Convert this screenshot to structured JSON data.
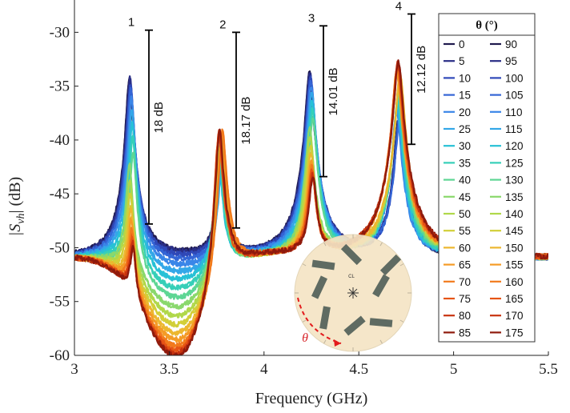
{
  "chart_data": {
    "type": "line",
    "xlabel": "Frequency (GHz)",
    "ylabel_main": "|S",
    "ylabel_sub": "vh",
    "ylabel_tail": "| (dB)",
    "xlim": [
      3,
      5.5
    ],
    "ylim": [
      -60,
      -27
    ],
    "xticks": [
      3,
      3.5,
      4,
      4.5,
      5,
      5.5
    ],
    "xtick_labels": [
      "3",
      "3.5",
      "4",
      "4.5",
      "5",
      "5.5"
    ],
    "yticks": [
      -60,
      -55,
      -50,
      -45,
      -40,
      -35,
      -30
    ],
    "ytick_labels": [
      "-60",
      "-55",
      "-50",
      "-45",
      "-40",
      "-35",
      "-30"
    ],
    "legend_title": "θ (°)",
    "legend_position": "right",
    "peaks": [
      {
        "label": "1",
        "freq": 3.3,
        "max_db": -29.8,
        "min_db": -47.8,
        "diff_label": "18 dB"
      },
      {
        "label": "2",
        "freq": 3.77,
        "max_db": -30.0,
        "min_db": -48.17,
        "diff_label": "18.17 dB"
      },
      {
        "label": "3",
        "freq": 4.25,
        "max_db": -29.4,
        "min_db": -43.4,
        "diff_label": "14.01 dB"
      },
      {
        "label": "4",
        "freq": 4.71,
        "max_db": -28.3,
        "min_db": -40.4,
        "diff_label": "12.12 dB"
      }
    ],
    "series_angles": [
      0,
      5,
      10,
      15,
      20,
      25,
      30,
      35,
      40,
      45,
      50,
      55,
      60,
      65,
      70,
      75,
      80,
      85,
      90,
      95,
      100,
      105,
      110,
      115,
      120,
      125,
      130,
      135,
      140,
      145,
      150,
      155,
      160,
      165,
      170,
      175
    ],
    "series_colors": [
      "#1f1a4d",
      "#2a2e86",
      "#2f48b8",
      "#3465d6",
      "#3a86e8",
      "#33a7e8",
      "#27c1d6",
      "#36cfb8",
      "#5ed694",
      "#8ad86c",
      "#b0d84a",
      "#d2cf38",
      "#ecb72f",
      "#f49b26",
      "#f27a1c",
      "#e65415",
      "#c8330f",
      "#8f1a0c",
      "#1f1a4d",
      "#2a2e86",
      "#2f48b8",
      "#3465d6",
      "#3a86e8",
      "#33a7e8",
      "#27c1d6",
      "#36cfb8",
      "#5ed694",
      "#8ad86c",
      "#b0d84a",
      "#d2cf38",
      "#ecb72f",
      "#f49b26",
      "#f27a1c",
      "#e65415",
      "#c8330f",
      "#8f1a0c"
    ],
    "inset": {
      "label_cl": "CL",
      "label_theta": "θ"
    }
  }
}
